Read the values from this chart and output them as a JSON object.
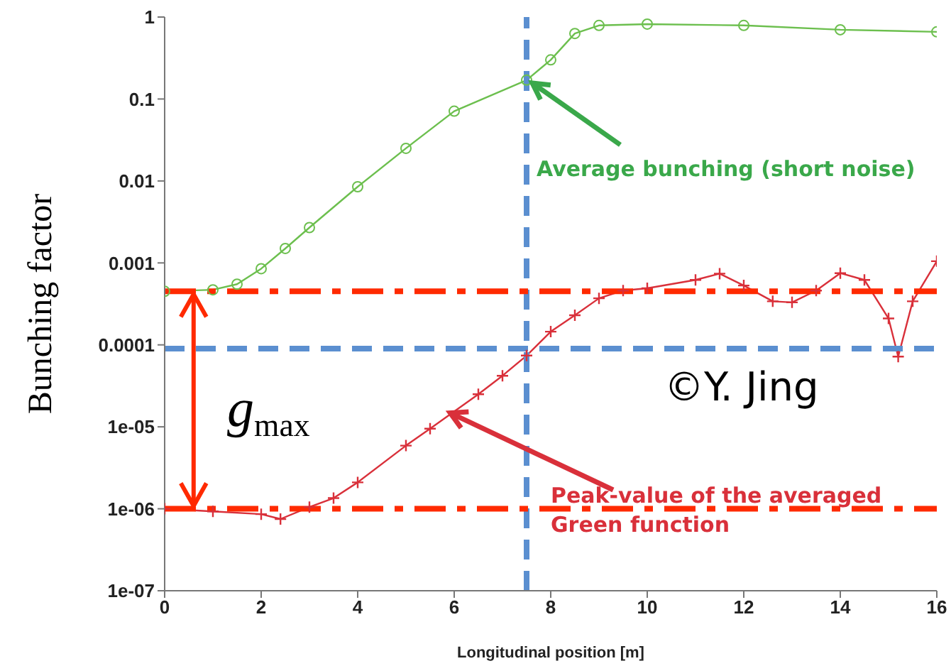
{
  "chart_data": {
    "type": "line",
    "xlabel": "Longitudinal position [m]",
    "ylabel": "Bunching factor",
    "log": "y",
    "grid": false,
    "xlim": [
      0,
      16
    ],
    "xticks": [
      0,
      2,
      4,
      6,
      8,
      10,
      12,
      14,
      16
    ],
    "ylim": [
      1e-07,
      1
    ],
    "yticks": [
      1,
      0.1,
      0.01,
      0.001,
      0.0001,
      {
        "value": 1e-05,
        "label": "1e-05"
      },
      {
        "value": 1e-06,
        "label": "1e-06"
      },
      {
        "value": 1e-07,
        "label": "1e-07"
      }
    ],
    "series": [
      {
        "color": "#6cbf4e",
        "marker": "circle",
        "x": [
          0,
          1,
          1.5,
          2,
          2.5,
          3,
          4,
          5,
          6,
          7.5,
          8,
          8.5,
          9,
          10,
          12,
          14,
          16
        ],
        "values": [
          0.00045,
          0.00047,
          0.00055,
          0.00085,
          0.0015,
          0.0027,
          0.0085,
          0.025,
          0.071,
          0.17,
          0.3,
          0.63,
          0.79,
          0.82,
          0.79,
          0.7,
          0.66
        ]
      },
      {
        "color": "#d9303a",
        "marker": "cross",
        "x": [
          0,
          1,
          2,
          2.4,
          3,
          3.5,
          4,
          5,
          5.5,
          6.5,
          7,
          7.5,
          8,
          8.5,
          9,
          9.5,
          10,
          11,
          11.5,
          12,
          12.6,
          13,
          13.5,
          14,
          14.5,
          15,
          15.2,
          15.5,
          16
        ],
        "values": [
          1e-06,
          9.3e-07,
          8.6e-07,
          7.5e-07,
          1.05e-06,
          1.35e-06,
          2.1e-06,
          5.9e-06,
          9.5e-06,
          2.5e-05,
          4.2e-05,
          7.4e-05,
          0.000145,
          0.00023,
          0.00037,
          0.00046,
          0.00049,
          0.00062,
          0.00074,
          0.00053,
          0.00034,
          0.00033,
          0.00046,
          0.00075,
          0.00062,
          0.00021,
          7.2e-05,
          0.00034,
          0.00105
        ]
      }
    ],
    "ref_lines": [
      {
        "axis": "x",
        "value": 7.5,
        "color": "#5b8fd0",
        "line_style": "dashed"
      },
      {
        "axis": "y",
        "value": 9e-05,
        "color": "#5b8fd0",
        "line_style": "dashed"
      },
      {
        "axis": "y",
        "value": 0.00045,
        "color": "#ff2a00",
        "line_style": "dashed"
      },
      {
        "axis": "y",
        "value": 1e-06,
        "color": "#ff2a00",
        "line_style": "dashed"
      }
    ],
    "annotations": [
      {
        "text": "Average bunching (short noise)",
        "x": 7.5,
        "y": 0.17
      },
      {
        "text": "Peak-value of the averaged Green function",
        "x": 5.8,
        "y": 1.6e-05
      },
      "©Y. Jing",
      "g$_{max}$"
    ]
  }
}
